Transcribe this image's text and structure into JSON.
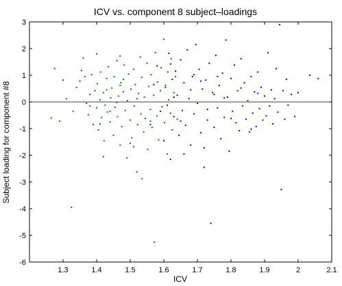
{
  "chart_data": {
    "type": "scatter",
    "title": "ICV vs. component 8 subject–loadings",
    "xlabel": "ICV",
    "ylabel": "Subject loading for component #8",
    "xlim": [
      1.2,
      2.1
    ],
    "ylim": [
      -6,
      3
    ],
    "xticks": [
      1.3,
      1.4,
      1.5,
      1.6,
      1.7,
      1.8,
      1.9,
      2,
      2.1
    ],
    "xtick_labels": [
      "1.3",
      "1.4",
      "1.5",
      "1.6",
      "1.7",
      "1.8",
      "1.9",
      "2",
      "2.1"
    ],
    "yticks": [
      -6,
      -5,
      -4,
      -3,
      -2,
      -1,
      0,
      1,
      2,
      3
    ],
    "ytick_labels": [
      "-6",
      "-5",
      "-4",
      "-3",
      "-2",
      "-1",
      "0",
      "1",
      "2",
      "3"
    ],
    "grid": false,
    "reference_line_y": 0,
    "series": [
      {
        "color": "#008000",
        "points": [
          [
            1.265,
            -0.6
          ],
          [
            1.275,
            1.25
          ],
          [
            1.29,
            -0.72
          ],
          [
            1.3,
            0.82
          ],
          [
            1.31,
            0.12
          ],
          [
            1.325,
            -3.95
          ],
          [
            1.33,
            -0.35
          ],
          [
            1.34,
            0.55
          ],
          [
            1.35,
            0.78
          ],
          [
            1.355,
            1.18
          ],
          [
            1.36,
            1.65
          ],
          [
            1.365,
            0.95
          ],
          [
            1.37,
            -0.05
          ],
          [
            1.375,
            -0.48
          ],
          [
            1.38,
            0.28
          ],
          [
            1.385,
            1.02
          ],
          [
            1.39,
            -0.85
          ],
          [
            1.395,
            0.42
          ],
          [
            1.4,
            -0.22
          ],
          [
            1.402,
            0.68
          ],
          [
            1.405,
            -1.05
          ],
          [
            1.41,
            0.08
          ],
          [
            1.412,
            1.12
          ],
          [
            1.415,
            -0.58
          ],
          [
            1.42,
            0.35
          ],
          [
            1.422,
            -1.45
          ],
          [
            1.425,
            -0.12
          ],
          [
            1.43,
            0.88
          ],
          [
            1.432,
            -0.38
          ],
          [
            1.435,
            1.32
          ],
          [
            1.44,
            -0.75
          ],
          [
            1.442,
            0.15
          ],
          [
            1.445,
            0.52
          ],
          [
            1.45,
            -1.25
          ],
          [
            1.452,
            0.95
          ],
          [
            1.455,
            -0.2
          ],
          [
            1.46,
            1.55
          ],
          [
            1.462,
            -0.55
          ],
          [
            1.465,
            0.22
          ],
          [
            1.47,
            -1.62
          ],
          [
            1.472,
            0.72
          ],
          [
            1.475,
            -0.92
          ],
          [
            1.48,
            0.38
          ],
          [
            1.482,
            1.38
          ],
          [
            1.485,
            -0.32
          ],
          [
            1.49,
            -2.1
          ],
          [
            1.492,
            0.05
          ],
          [
            1.495,
            1.05
          ],
          [
            1.5,
            -0.68
          ],
          [
            1.502,
            0.48
          ],
          [
            1.505,
            -1.35
          ],
          [
            1.51,
            1.22
          ],
          [
            1.512,
            -0.15
          ],
          [
            1.515,
            0.65
          ],
          [
            1.52,
            -2.62
          ],
          [
            1.522,
            -0.85
          ],
          [
            1.525,
            0.32
          ],
          [
            1.53,
            1.68
          ],
          [
            1.532,
            -0.45
          ],
          [
            1.535,
            0.92
          ],
          [
            1.54,
            -1.12
          ],
          [
            1.542,
            0.18
          ],
          [
            1.545,
            -0.62
          ],
          [
            1.55,
            1.45
          ],
          [
            1.552,
            -1.78
          ],
          [
            1.555,
            0.58
          ],
          [
            1.56,
            -0.28
          ],
          [
            1.562,
            1.02
          ],
          [
            1.565,
            -0.95
          ],
          [
            1.57,
            0.25
          ],
          [
            1.572,
            -5.25
          ],
          [
            1.575,
            1.85
          ],
          [
            1.58,
            -0.52
          ],
          [
            1.582,
            0.75
          ],
          [
            1.585,
            -1.42
          ],
          [
            1.59,
            0.42
          ],
          [
            1.592,
            1.28
          ],
          [
            1.595,
            -0.18
          ],
          [
            1.6,
            2.35
          ],
          [
            1.602,
            -0.78
          ],
          [
            1.605,
            0.62
          ],
          [
            1.61,
            -1.95
          ],
          [
            1.612,
            1.12
          ],
          [
            1.615,
            0.08
          ],
          [
            1.62,
            -0.42
          ],
          [
            1.622,
            1.62
          ],
          [
            1.625,
            -1.05
          ],
          [
            1.63,
            0.35
          ],
          [
            1.635,
            0.95
          ],
          [
            1.64,
            -0.65
          ],
          [
            1.4,
            1.8
          ],
          [
            1.42,
            -2.05
          ],
          [
            1.46,
            -0.02
          ],
          [
            1.48,
            0.85
          ],
          [
            1.5,
            -1.55
          ],
          [
            1.44,
            -0.35
          ],
          [
            1.47,
            0.62
          ],
          [
            1.52,
            0.12
          ],
          [
            1.56,
            -0.72
          ],
          [
            1.38,
            -0.15
          ],
          [
            1.535,
            -2.88
          ],
          [
            1.51,
            -1.68
          ],
          [
            1.47,
            1.72
          ],
          [
            1.43,
            0.45
          ],
          [
            1.41,
            -0.82
          ]
        ]
      },
      {
        "color": "#0000ff",
        "points": [
          [
            1.56,
            -0.85
          ],
          [
            1.58,
            1.35
          ],
          [
            1.6,
            -1.45
          ],
          [
            1.605,
            0.55
          ],
          [
            1.61,
            -0.12
          ],
          [
            1.615,
            1.82
          ],
          [
            1.62,
            -2.15
          ],
          [
            1.625,
            0.85
          ],
          [
            1.63,
            -0.55
          ],
          [
            1.635,
            1.15
          ],
          [
            1.64,
            0.25
          ],
          [
            1.645,
            -1.25
          ],
          [
            1.65,
            1.58
          ],
          [
            1.655,
            -0.32
          ],
          [
            1.66,
            0.72
          ],
          [
            1.665,
            -0.88
          ],
          [
            1.67,
            1.95
          ],
          [
            1.675,
            0.12
          ],
          [
            1.68,
            -1.62
          ],
          [
            1.685,
            0.95
          ],
          [
            1.69,
            -0.45
          ],
          [
            1.695,
            2.15
          ],
          [
            1.7,
            -0.05
          ],
          [
            1.705,
            1.22
          ],
          [
            1.71,
            -1.15
          ],
          [
            1.715,
            0.48
          ],
          [
            1.72,
            -2.45
          ],
          [
            1.725,
            0.82
          ],
          [
            1.73,
            -0.68
          ],
          [
            1.735,
            1.45
          ],
          [
            1.74,
            -4.55
          ],
          [
            1.745,
            0.35
          ],
          [
            1.75,
            -0.95
          ],
          [
            1.755,
            1.75
          ],
          [
            1.76,
            -0.22
          ],
          [
            1.765,
            0.62
          ],
          [
            1.77,
            -1.38
          ],
          [
            1.775,
            1.08
          ],
          [
            1.78,
            -0.58
          ],
          [
            1.785,
            2.32
          ],
          [
            1.79,
            0.18
          ],
          [
            1.795,
            -1.85
          ],
          [
            1.8,
            0.88
          ],
          [
            1.805,
            -0.35
          ],
          [
            1.81,
            1.38
          ],
          [
            1.815,
            -0.78
          ],
          [
            1.82,
            0.42
          ],
          [
            1.825,
            -1.08
          ],
          [
            1.83,
            1.62
          ],
          [
            1.835,
            -0.15
          ],
          [
            1.84,
            0.72
          ],
          [
            1.845,
            -0.65
          ],
          [
            1.85,
            0.05
          ],
          [
            1.855,
            -1.12
          ],
          [
            1.86,
            0.95
          ],
          [
            1.865,
            -0.42
          ],
          [
            1.87,
            0.38
          ],
          [
            1.875,
            -0.92
          ],
          [
            1.88,
            1.12
          ],
          [
            1.885,
            -0.25
          ],
          [
            1.89,
            0.55
          ],
          [
            1.895,
            -0.68
          ],
          [
            1.9,
            0.22
          ],
          [
            1.905,
            -0.52
          ],
          [
            1.91,
            1.85
          ],
          [
            1.915,
            -0.15
          ],
          [
            1.92,
            0.45
          ],
          [
            1.925,
            -0.82
          ],
          [
            1.93,
            0.12
          ],
          [
            1.935,
            1.25
          ],
          [
            1.94,
            -0.38
          ],
          [
            1.945,
            2.9
          ],
          [
            1.95,
            -3.28
          ],
          [
            1.955,
            0.42
          ],
          [
            1.96,
            -0.65
          ],
          [
            1.965,
            0.85
          ],
          [
            1.97,
            -0.12
          ],
          [
            1.98,
            0.28
          ],
          [
            1.99,
            -0.55
          ],
          [
            2.0,
            0.35
          ],
          [
            2.035,
            1.0
          ],
          [
            2.06,
            0.88
          ],
          [
            1.57,
            0.65
          ],
          [
            1.59,
            -0.35
          ],
          [
            1.63,
            0.18
          ],
          [
            1.66,
            -1.95
          ],
          [
            1.68,
            0.45
          ],
          [
            1.71,
            0.78
          ],
          [
            1.73,
            -0.28
          ],
          [
            1.76,
            0.95
          ],
          [
            1.78,
            0.15
          ],
          [
            1.8,
            -0.62
          ],
          [
            1.83,
            0.52
          ],
          [
            1.86,
            -1.02
          ],
          [
            1.88,
            0.32
          ],
          [
            1.69,
            1.02
          ],
          [
            1.72,
            -1.72
          ],
          [
            1.75,
            0.28
          ],
          [
            1.62,
            1.42
          ],
          [
            1.65,
            -0.72
          ]
        ]
      }
    ]
  }
}
